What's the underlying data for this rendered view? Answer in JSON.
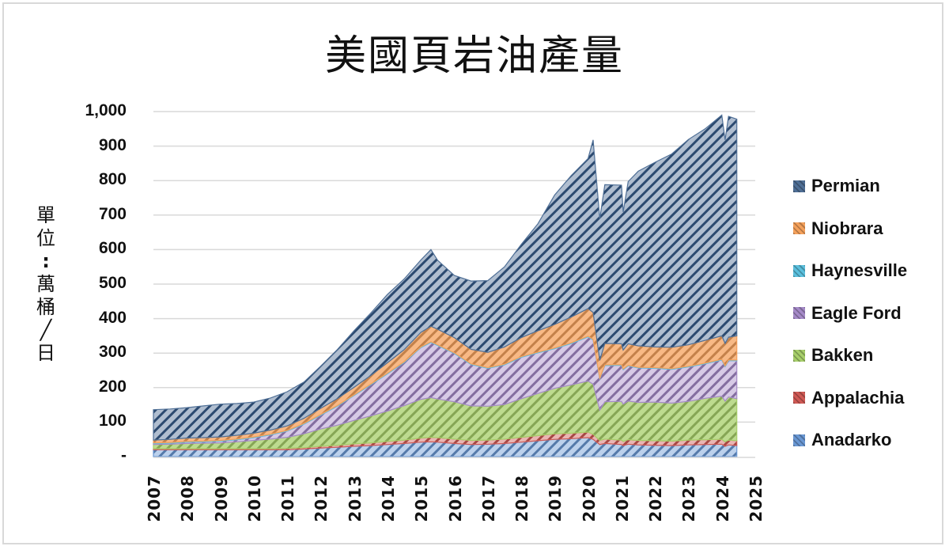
{
  "chart_data": {
    "type": "area",
    "stacked": true,
    "title": "美國頁岩油產量",
    "ylabel": "單位：萬桶／日",
    "xlabel": "",
    "ylim": [
      0,
      1000
    ],
    "xlim": [
      2007,
      2025
    ],
    "y_ticks": [
      {
        "value": 0,
        "label": "-"
      },
      {
        "value": 100,
        "label": "100"
      },
      {
        "value": 200,
        "label": "200"
      },
      {
        "value": 300,
        "label": "300"
      },
      {
        "value": 400,
        "label": "400"
      },
      {
        "value": 500,
        "label": "500"
      },
      {
        "value": 600,
        "label": "600"
      },
      {
        "value": 700,
        "label": "700"
      },
      {
        "value": 800,
        "label": "800"
      },
      {
        "value": 900,
        "label": "900"
      },
      {
        "value": 1000,
        "label": "1,000"
      }
    ],
    "x_ticks": [
      "2007",
      "2008",
      "2009",
      "2010",
      "2011",
      "2012",
      "2013",
      "2014",
      "2015",
      "2016",
      "2017",
      "2018",
      "2019",
      "2020",
      "2021",
      "2022",
      "2023",
      "2024",
      "2025"
    ],
    "grid": true,
    "legend_position": "right",
    "x": [
      2007.0,
      2007.5,
      2008.0,
      2008.5,
      2009.0,
      2009.5,
      2010.0,
      2010.5,
      2011.0,
      2011.5,
      2012.0,
      2012.5,
      2013.0,
      2013.5,
      2014.0,
      2014.5,
      2015.0,
      2015.3,
      2015.5,
      2016.0,
      2016.5,
      2017.0,
      2017.5,
      2018.0,
      2018.5,
      2019.0,
      2019.5,
      2020.0,
      2020.15,
      2020.35,
      2020.5,
      2021.0,
      2021.05,
      2021.2,
      2021.5,
      2022.0,
      2022.5,
      2023.0,
      2023.5,
      2024.0,
      2024.1,
      2024.2,
      2024.45
    ],
    "series": [
      {
        "name": "Anadarko",
        "color": "#6a98d4",
        "values": [
          20,
          20,
          20,
          20,
          20,
          20,
          20,
          20,
          20,
          22,
          25,
          27,
          30,
          32,
          35,
          38,
          42,
          43,
          42,
          38,
          35,
          36,
          38,
          42,
          46,
          50,
          52,
          55,
          50,
          35,
          38,
          35,
          32,
          36,
          34,
          33,
          32,
          34,
          35,
          36,
          30,
          34,
          32
        ]
      },
      {
        "name": "Appalachia",
        "color": "#d05a55",
        "values": [
          3,
          3,
          3,
          3,
          3,
          3,
          3,
          3,
          4,
          4,
          5,
          6,
          7,
          8,
          9,
          10,
          12,
          13,
          13,
          13,
          12,
          12,
          13,
          14,
          15,
          16,
          16,
          16,
          15,
          12,
          13,
          13,
          12,
          13,
          13,
          13,
          13,
          14,
          14,
          14,
          13,
          14,
          14
        ]
      },
      {
        "name": "Bakken",
        "color": "#a7cf6a",
        "values": [
          12,
          13,
          15,
          16,
          17,
          20,
          24,
          28,
          32,
          40,
          50,
          58,
          68,
          78,
          88,
          100,
          112,
          115,
          112,
          108,
          100,
          98,
          100,
          112,
          122,
          132,
          140,
          148,
          145,
          88,
          108,
          112,
          108,
          112,
          110,
          112,
          110,
          112,
          120,
          125,
          118,
          125,
          122
        ]
      },
      {
        "name": "Eagle Ford",
        "color": "#a58ac8",
        "values": [
          3,
          3,
          4,
          4,
          5,
          6,
          8,
          12,
          18,
          28,
          40,
          55,
          72,
          90,
          108,
          125,
          150,
          160,
          155,
          140,
          120,
          110,
          115,
          120,
          118,
          115,
          120,
          128,
          128,
          90,
          105,
          105,
          100,
          102,
          100,
          98,
          98,
          100,
          100,
          105,
          100,
          105,
          110
        ]
      },
      {
        "name": "Haynesville",
        "color": "#5bc0de",
        "values": [
          2,
          2,
          2,
          2,
          2,
          2,
          2,
          2,
          2,
          2,
          2,
          2,
          2,
          2,
          2,
          2,
          2,
          2,
          2,
          2,
          2,
          2,
          2,
          2,
          2,
          2,
          2,
          2,
          2,
          2,
          2,
          2,
          2,
          2,
          2,
          2,
          2,
          2,
          2,
          2,
          2,
          2,
          2
        ]
      },
      {
        "name": "Niobrara",
        "color": "#f5a15c",
        "values": [
          8,
          9,
          10,
          10,
          10,
          11,
          11,
          12,
          13,
          15,
          18,
          20,
          22,
          25,
          30,
          35,
          42,
          45,
          45,
          44,
          42,
          44,
          50,
          55,
          62,
          68,
          75,
          80,
          78,
          52,
          62,
          60,
          55,
          62,
          62,
          60,
          62,
          62,
          66,
          68,
          65,
          66,
          70
        ]
      },
      {
        "name": "Permian",
        "color": "#4f6f96",
        "values": [
          88,
          88,
          88,
          92,
          95,
          92,
          90,
          93,
          99,
          105,
          122,
          142,
          164,
          181,
          198,
          205,
          210,
          222,
          200,
          180,
          198,
          208,
          232,
          270,
          310,
          375,
          410,
          435,
          500,
          410,
          460,
          460,
          400,
          470,
          506,
          535,
          560,
          595,
          613,
          640,
          590,
          640,
          628
        ]
      }
    ]
  }
}
